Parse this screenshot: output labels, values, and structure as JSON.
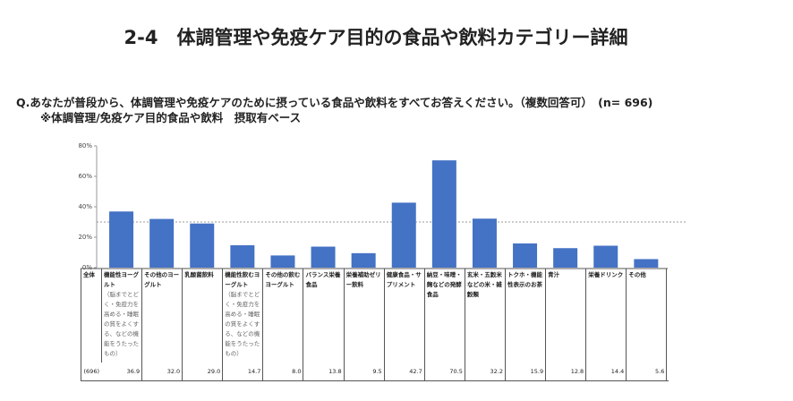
{
  "chart_data": {
    "type": "bar",
    "title": "2-4　体調管理や免疫ケア目的の食品や飲料カテゴリー詳細",
    "question": "Q.あなたが普段から、体調管理や免疫ケアのために摂っている食品や飲料をすべてお答えください。（複数回答可）　(n= 696)",
    "subtitle": "※体調管理/免疫ケア目的食品や飲料　摂取有ベース",
    "row_label": "全体",
    "base_label": "(696)",
    "categories": [
      "機能性ヨーグルト",
      "その他のヨーグルト",
      "乳酸菌飲料",
      "機能性飲むヨーグルト",
      "その他の飲むヨーグルト",
      "バランス栄養食品",
      "栄養補助ゼリー飲料",
      "健康食品・サプリメント",
      "納豆・味噌・麹などの発酵食品",
      "玄米・五穀米などの米・雑穀類",
      "トクホ・機能性表示のお茶",
      "青汁",
      "栄養ドリンク",
      "その他"
    ],
    "category_notes": [
      "（脳までとどく・免疫力を高める・睡眠の質をよくする、などの機能をうたったもの）",
      null,
      null,
      "（脳までとどく・免疫力を高める・睡眠の質をよくする、などの機能をうたったもの）",
      null,
      null,
      null,
      null,
      null,
      null,
      null,
      null,
      null,
      null
    ],
    "values": [
      36.9,
      32.0,
      29.0,
      14.7,
      8.0,
      13.8,
      9.5,
      42.7,
      70.5,
      32.2,
      15.9,
      12.8,
      14.4,
      5.6
    ],
    "value_labels": [
      "36.9",
      "32.0",
      "29.0",
      "14.7",
      "8.0",
      "13.8",
      "9.5",
      "42.7",
      "70.5",
      "32.2",
      "15.9",
      "12.8",
      "14.4",
      "5.6"
    ],
    "color": "#4472c4",
    "reference_line": 30,
    "ylim": [
      0,
      80
    ],
    "yticks": [
      {
        "value": 0,
        "label": "0%"
      },
      {
        "value": 20,
        "label": "20%"
      },
      {
        "value": 40,
        "label": "40%"
      },
      {
        "value": 60,
        "label": "60%"
      },
      {
        "value": 80,
        "label": "80%"
      }
    ]
  }
}
